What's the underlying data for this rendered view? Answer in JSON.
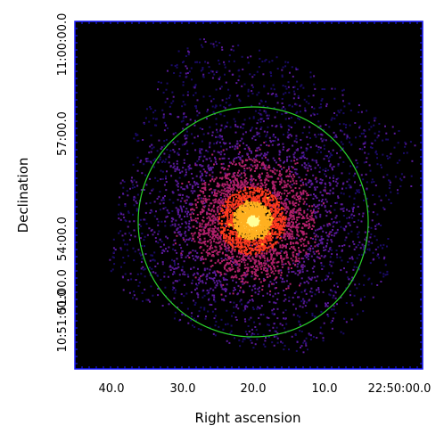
{
  "chart_data": {
    "type": "scatter",
    "xlabel": "Right ascension",
    "ylabel": "Declination",
    "x_ticks": [
      "40.0",
      "30.0",
      "20.0",
      "10.0",
      "22:50:00.0"
    ],
    "y_ticks": [
      "11:00:00.0",
      "57:00.0",
      "54:00.0",
      "51:00.0",
      "10:51:00.0"
    ],
    "background": "#000000",
    "frame_color": "#1a1aff",
    "region_color": "#2bd42b",
    "colormap": [
      "#1a0a66",
      "#5a1a9a",
      "#b0206a",
      "#ff3a20",
      "#ffb020",
      "#ffff99"
    ],
    "grid": false
  }
}
